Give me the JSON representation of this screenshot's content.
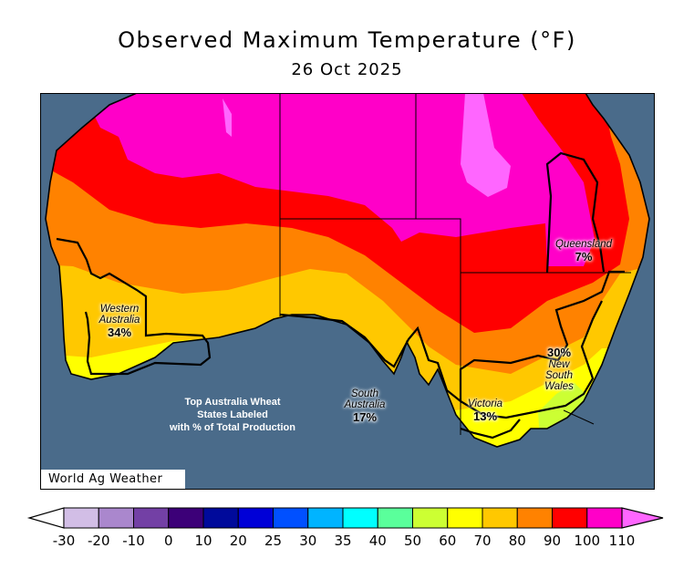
{
  "title": "Observed Maximum Temperature (°F)",
  "date": "26 Oct 2025",
  "credit": "World Ag Weather",
  "note": [
    "Top Australia Wheat",
    "States Labeled",
    "with % of Total Production"
  ],
  "states": [
    {
      "name": "Western Australia",
      "lines": [
        "Western",
        "Australia"
      ],
      "share": "34%"
    },
    {
      "name": "South Australia",
      "lines": [
        "South",
        "Australia"
      ],
      "share": "17%"
    },
    {
      "name": "Victoria",
      "lines": [
        "Victoria"
      ],
      "share": "13%"
    },
    {
      "name": "New South Wales",
      "lines": [
        "New",
        "South",
        "Wales"
      ],
      "share": "30%"
    },
    {
      "name": "Queensland",
      "lines": [
        "Queensland"
      ],
      "share": "7%"
    }
  ],
  "colors": {
    "ocean": "#4a6b8a",
    "frame": "#000000"
  },
  "legend": {
    "labels": [
      "-30",
      "-20",
      "-10",
      "0",
      "10",
      "20",
      "25",
      "30",
      "35",
      "40",
      "50",
      "60",
      "70",
      "80",
      "90",
      "100",
      "110"
    ],
    "under_color": "#ffffff",
    "colors": [
      "#d2bee6",
      "#aa87cd",
      "#7340a5",
      "#3c0078",
      "#000a9b",
      "#0000d7",
      "#0050ff",
      "#00b4ff",
      "#00ffff",
      "#5aff9b",
      "#ccff33",
      "#ffff00",
      "#ffc800",
      "#ff8200",
      "#ff0000",
      "#ff00c8"
    ],
    "over_color": "#ff66ff"
  }
}
